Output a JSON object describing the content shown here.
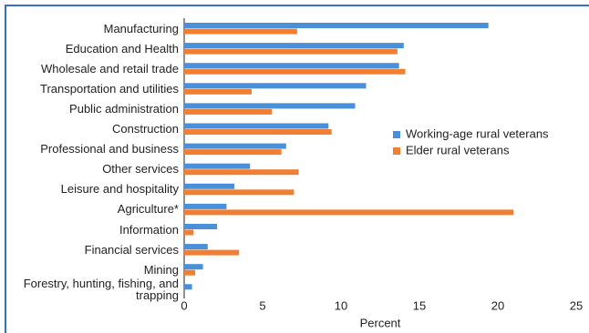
{
  "chart_data": {
    "type": "hbar",
    "x_label": "Percent",
    "categories": [
      "Manufacturing",
      "Education and Health",
      "Wholesale and retail trade",
      "Transportation and utilities",
      "Public administration",
      "Construction",
      "Professional and business",
      "Other services",
      "Leisure and hospitality",
      "Agriculture*",
      "Information",
      "Financial services",
      "Mining",
      "Forestry, hunting, fishing, and trapping"
    ],
    "series": [
      {
        "name": "Working-age rural veterans",
        "color": "#4a90d9",
        "values": [
          19.4,
          14.0,
          13.7,
          11.6,
          10.9,
          9.2,
          6.5,
          4.2,
          3.2,
          2.7,
          2.1,
          1.5,
          1.2,
          0.5
        ]
      },
      {
        "name": "Elder rural veterans",
        "color": "#f07f33",
        "values": [
          7.2,
          13.6,
          14.1,
          4.3,
          5.6,
          9.4,
          6.2,
          7.3,
          7.0,
          21.0,
          0.6,
          3.5,
          0.7,
          0
        ]
      }
    ],
    "xlim": [
      0,
      25
    ],
    "xticks": [
      0,
      5,
      10,
      15,
      20,
      25
    ],
    "grid": false,
    "legend": "right"
  }
}
